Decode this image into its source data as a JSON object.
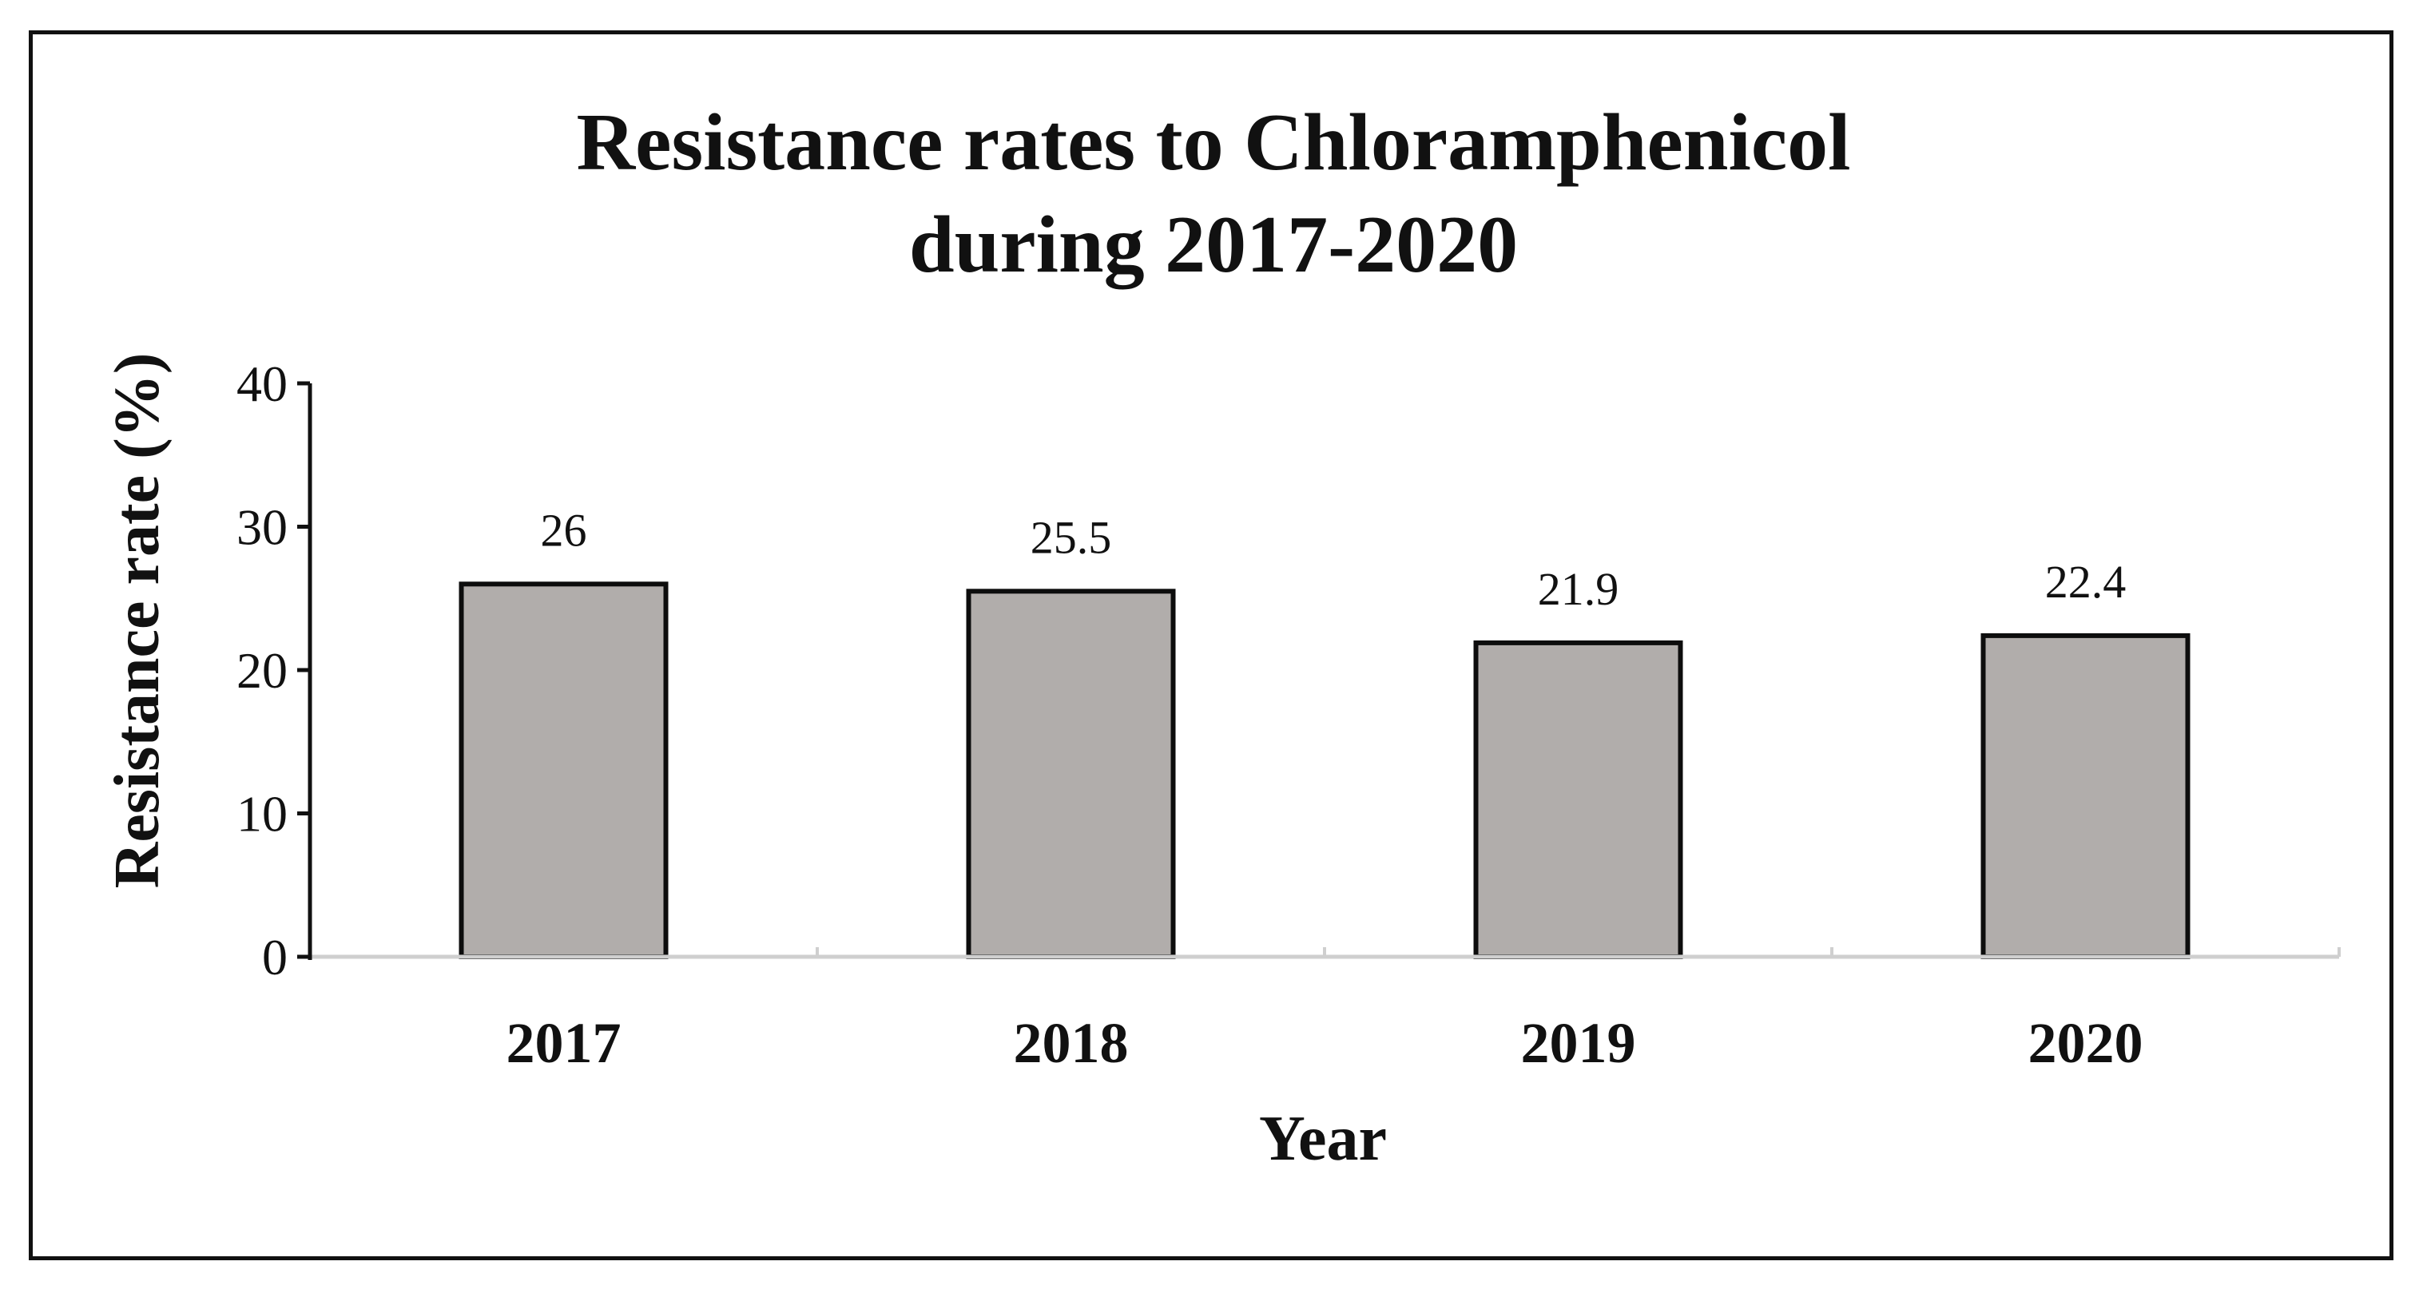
{
  "chart_data": {
    "type": "bar",
    "title_lines": [
      "Resistance rates to Chloramphenicol",
      "during 2017-2020"
    ],
    "categories": [
      "2017",
      "2018",
      "2019",
      "2020"
    ],
    "values": [
      26,
      25.5,
      21.9,
      22.4
    ],
    "value_labels": [
      "26",
      "25.5",
      "21.9",
      "22.4"
    ],
    "xlabel": "Year",
    "ylabel": "Resistance rate (%)",
    "ylim": [
      0,
      40
    ],
    "yticks": [
      0,
      10,
      20,
      30,
      40
    ],
    "ytick_labels": [
      "0",
      "10",
      "20",
      "30",
      "40"
    ],
    "grid": false,
    "legend": "none",
    "colors": {
      "bar_fill": "#b1adab",
      "bar_stroke": "#0d0d0d",
      "axis": "#111111",
      "x_axis": "#cfcfcf",
      "text": "#111111"
    }
  }
}
